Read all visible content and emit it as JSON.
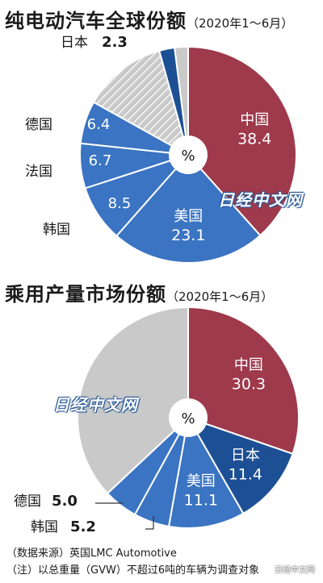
{
  "header": {
    "title1": "纯电动汽车全球份额",
    "title2": "乘用产量市场份额",
    "period": "（2020年1～6月）"
  },
  "watermark": "日经中文网",
  "corner_watermark": "日经中文网",
  "notes": {
    "source": "（数据来源）英国LMC Automotive",
    "remark": "（注）以总重量（GVW）不超过6吨的车辆为调查对象"
  },
  "colors": {
    "china": "#9e3a4c",
    "usa": "#3a74c2",
    "japan": "#1d4f94",
    "mid_blue": "#3a74c2",
    "stripe": "#c9c9c9",
    "other": "#c9c9c9"
  },
  "chart_data": [
    {
      "type": "pie",
      "title": "纯电动汽车全球份额",
      "subtitle": "（2020年1～6月）",
      "unit_label": "%",
      "slices": [
        {
          "name": "中国",
          "value": 38.4,
          "label": "38.4",
          "color": "china",
          "label_inside": true
        },
        {
          "name": "美国",
          "value": 23.1,
          "label": "23.1",
          "color": "usa",
          "label_inside": true
        },
        {
          "name": "韩国",
          "value": 8.5,
          "label": "8.5",
          "color": "mid_blue",
          "label_inside": false
        },
        {
          "name": "法国",
          "value": 6.7,
          "label": "6.7",
          "color": "mid_blue",
          "label_inside": false
        },
        {
          "name": "德国",
          "value": 6.4,
          "label": "6.4",
          "color": "mid_blue",
          "label_inside": false
        },
        {
          "name": "",
          "value": 12.6,
          "label": "",
          "color": "stripe",
          "label_inside": false
        },
        {
          "name": "日本",
          "value": 2.3,
          "label": "2.3",
          "color": "japan",
          "label_inside": false
        },
        {
          "name": "",
          "value": 2.0,
          "label": "",
          "color": "other",
          "label_inside": false
        }
      ]
    },
    {
      "type": "pie",
      "title": "乘用产量市场份额",
      "subtitle": "（2020年1～6月）",
      "unit_label": "%",
      "slices": [
        {
          "name": "中国",
          "value": 30.3,
          "label": "30.3",
          "color": "china",
          "label_inside": true
        },
        {
          "name": "日本",
          "value": 11.4,
          "label": "11.4",
          "color": "japan",
          "label_inside": true
        },
        {
          "name": "美国",
          "value": 11.1,
          "label": "11.1",
          "color": "usa",
          "label_inside": true
        },
        {
          "name": "韩国",
          "value": 5.2,
          "label": "5.2",
          "color": "mid_blue",
          "label_inside": false
        },
        {
          "name": "德国",
          "value": 5.0,
          "label": "5.0",
          "color": "mid_blue",
          "label_inside": false
        },
        {
          "name": "",
          "value": 37.0,
          "label": "",
          "color": "other",
          "label_inside": false
        }
      ]
    }
  ]
}
